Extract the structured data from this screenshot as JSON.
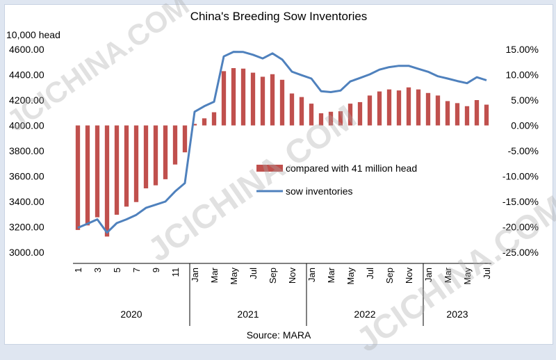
{
  "chart_data": {
    "type": "bar+line",
    "title": "China's Breeding Sow Inventories",
    "left_axis_unit": "10,000 head",
    "left_ylim": [
      3000,
      4600
    ],
    "left_ticks": [
      "4600.00",
      "4400.00",
      "4200.00",
      "4000.00",
      "3800.00",
      "3600.00",
      "3400.00",
      "3200.00",
      "3000.00"
    ],
    "right_ylim": [
      -25,
      15
    ],
    "right_ticks": [
      "15.00%",
      "10.00%",
      "5.00%",
      "0.00%",
      "-5.00%",
      "-10.00%",
      "-15.00%",
      "-20.00%",
      "-25.00%"
    ],
    "x_labels": [
      "1",
      "",
      "3",
      "",
      "5",
      "",
      "7",
      "",
      "9",
      "",
      "11",
      "",
      "Jan",
      "",
      "Mar",
      "",
      "May",
      "",
      "Jul",
      "",
      "Sep",
      "",
      "Nov",
      "",
      "Jan",
      "",
      "Mar",
      "",
      "May",
      "",
      "Jul",
      "",
      "Sep",
      "",
      "Nov",
      "",
      "Jan",
      "",
      "Mar",
      "",
      "May",
      "",
      "Jul"
    ],
    "years": [
      {
        "label": "2020",
        "start": 0,
        "end": 11
      },
      {
        "label": "2021",
        "start": 12,
        "end": 23
      },
      {
        "label": "2022",
        "start": 24,
        "end": 35
      },
      {
        "label": "2023",
        "start": 36,
        "end": 42
      }
    ],
    "series": [
      {
        "name": "compared with 41 million head",
        "type": "bar",
        "axis": "right",
        "color": "#c0504d",
        "values": [
          -20.6,
          -19.7,
          -18.1,
          -21.9,
          -17.6,
          -16.0,
          -15.1,
          -12.4,
          -11.8,
          -10.6,
          -7.7,
          -5.3,
          0.3,
          1.4,
          2.6,
          10.7,
          11.3,
          11.2,
          10.4,
          9.6,
          10.1,
          9.0,
          6.3,
          5.6,
          4.3,
          2.4,
          2.7,
          2.8,
          4.3,
          4.6,
          5.9,
          6.7,
          7.1,
          6.9,
          7.5,
          7.1,
          6.4,
          5.9,
          4.8,
          4.4,
          3.8,
          5.0,
          4.1
        ]
      },
      {
        "name": "sow inventories",
        "type": "line",
        "axis": "left",
        "color": "#4f81bd",
        "values": [
          3193,
          3225,
          3260,
          3155,
          3230,
          3260,
          3295,
          3350,
          3375,
          3400,
          3480,
          3545,
          4108,
          4152,
          4187,
          4544,
          4580,
          4579,
          4557,
          4528,
          4568,
          4520,
          4424,
          4396,
          4370,
          4270,
          4263,
          4275,
          4347,
          4374,
          4403,
          4440,
          4460,
          4470,
          4470,
          4446,
          4423,
          4388,
          4370,
          4350,
          4333,
          4380,
          4356
        ]
      }
    ],
    "legend": {
      "position": "center-right",
      "bar_label": "compared with 41 million head",
      "line_label": "sow inventories"
    },
    "source": "Source: MARA",
    "watermark": "JCICHINA.COM"
  }
}
